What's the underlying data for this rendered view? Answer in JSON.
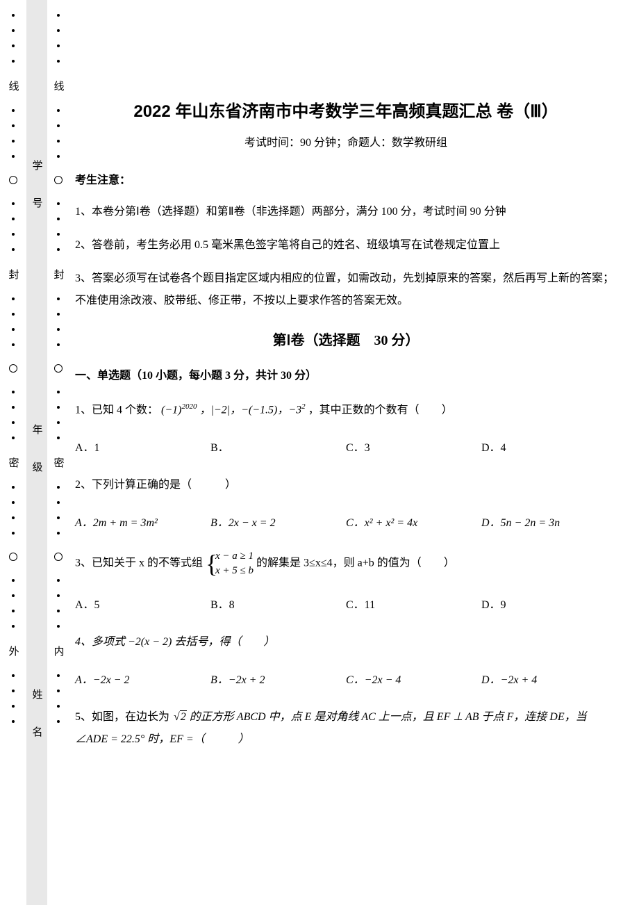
{
  "page": {
    "title": "2022 年山东省济南市中考数学三年高频真题汇总 卷（Ⅲ）",
    "subtitle": "考试时间：90 分钟；命题人：数学教研组",
    "notice_header": "考生注意：",
    "instructions": [
      "1、本卷分第Ⅰ卷（选择题）和第Ⅱ卷（非选择题）两部分，满分 100 分，考试时间 90 分钟",
      "2、答卷前，考生务必用 0.5 毫米黑色签字笔将自己的姓名、班级填写在试卷规定位置上",
      "3、答案必须写在试卷各个题目指定区域内相应的位置，如需改动，先划掉原来的答案，然后再写上新的答案；不准使用涂改液、胶带纸、修正带，不按以上要求作答的答案无效。"
    ],
    "section_title": "第Ⅰ卷（选择题　30 分）",
    "subsection": "一、单选题（10 小题，每小题 3 分，共计 30 分）"
  },
  "margin_labels": {
    "outer": [
      "线",
      "封",
      "密",
      "外"
    ],
    "inner_fields": [
      "学　号",
      "年　级",
      "姓　名"
    ],
    "col3": [
      "线",
      "封",
      "密",
      "内"
    ]
  },
  "questions": {
    "q1": {
      "stem_prefix": "1、已知 4 个数：",
      "expr1": "(−1)",
      "exp1": "2020",
      "expr2": "，|−2|，−(−1.5)，−3",
      "exp2": "2",
      "stem_suffix": "，其中正数的个数有（　　）",
      "optA": "A．1",
      "optB": "B．",
      "optC": "C．3",
      "optD": "D．4"
    },
    "q2": {
      "stem": "2、下列计算正确的是（　　　）",
      "optA": "A．2m + m = 3m²",
      "optB": "B．2x − x = 2",
      "optC": "C．x² + x² = 4x",
      "optD": "D．5n − 2n = 3n"
    },
    "q3": {
      "stem_prefix": "3、已知关于 x 的不等式组",
      "line1": "x − a ≥ 1",
      "line2": "x + 5 ≤ b",
      "stem_suffix": "的解集是 3≤x≤4，则 a+b 的值为（　　）",
      "optA": "A．5",
      "optB": "B．8",
      "optC": "C．11",
      "optD": "D．9"
    },
    "q4": {
      "stem": "4、多项式 −2(x − 2) 去括号，得（　　）",
      "optA": "A．−2x − 2",
      "optB": "B．−2x + 2",
      "optC": "C．−2x − 4",
      "optD": "D．−2x + 4"
    },
    "q5": {
      "stem_prefix": "5、如图，在边长为",
      "sqrt_val": "2",
      "stem_mid": " 的正方形 ABCD 中，点 E 是对角线 AC 上一点，且 EF ⊥ AB 于点 F，连接 DE，当 ∠ADE = 22.5° 时，EF =（　　　）"
    }
  },
  "colors": {
    "background": "#ffffff",
    "inner_margin_bg": "#e8e8e8",
    "text": "#000000"
  }
}
